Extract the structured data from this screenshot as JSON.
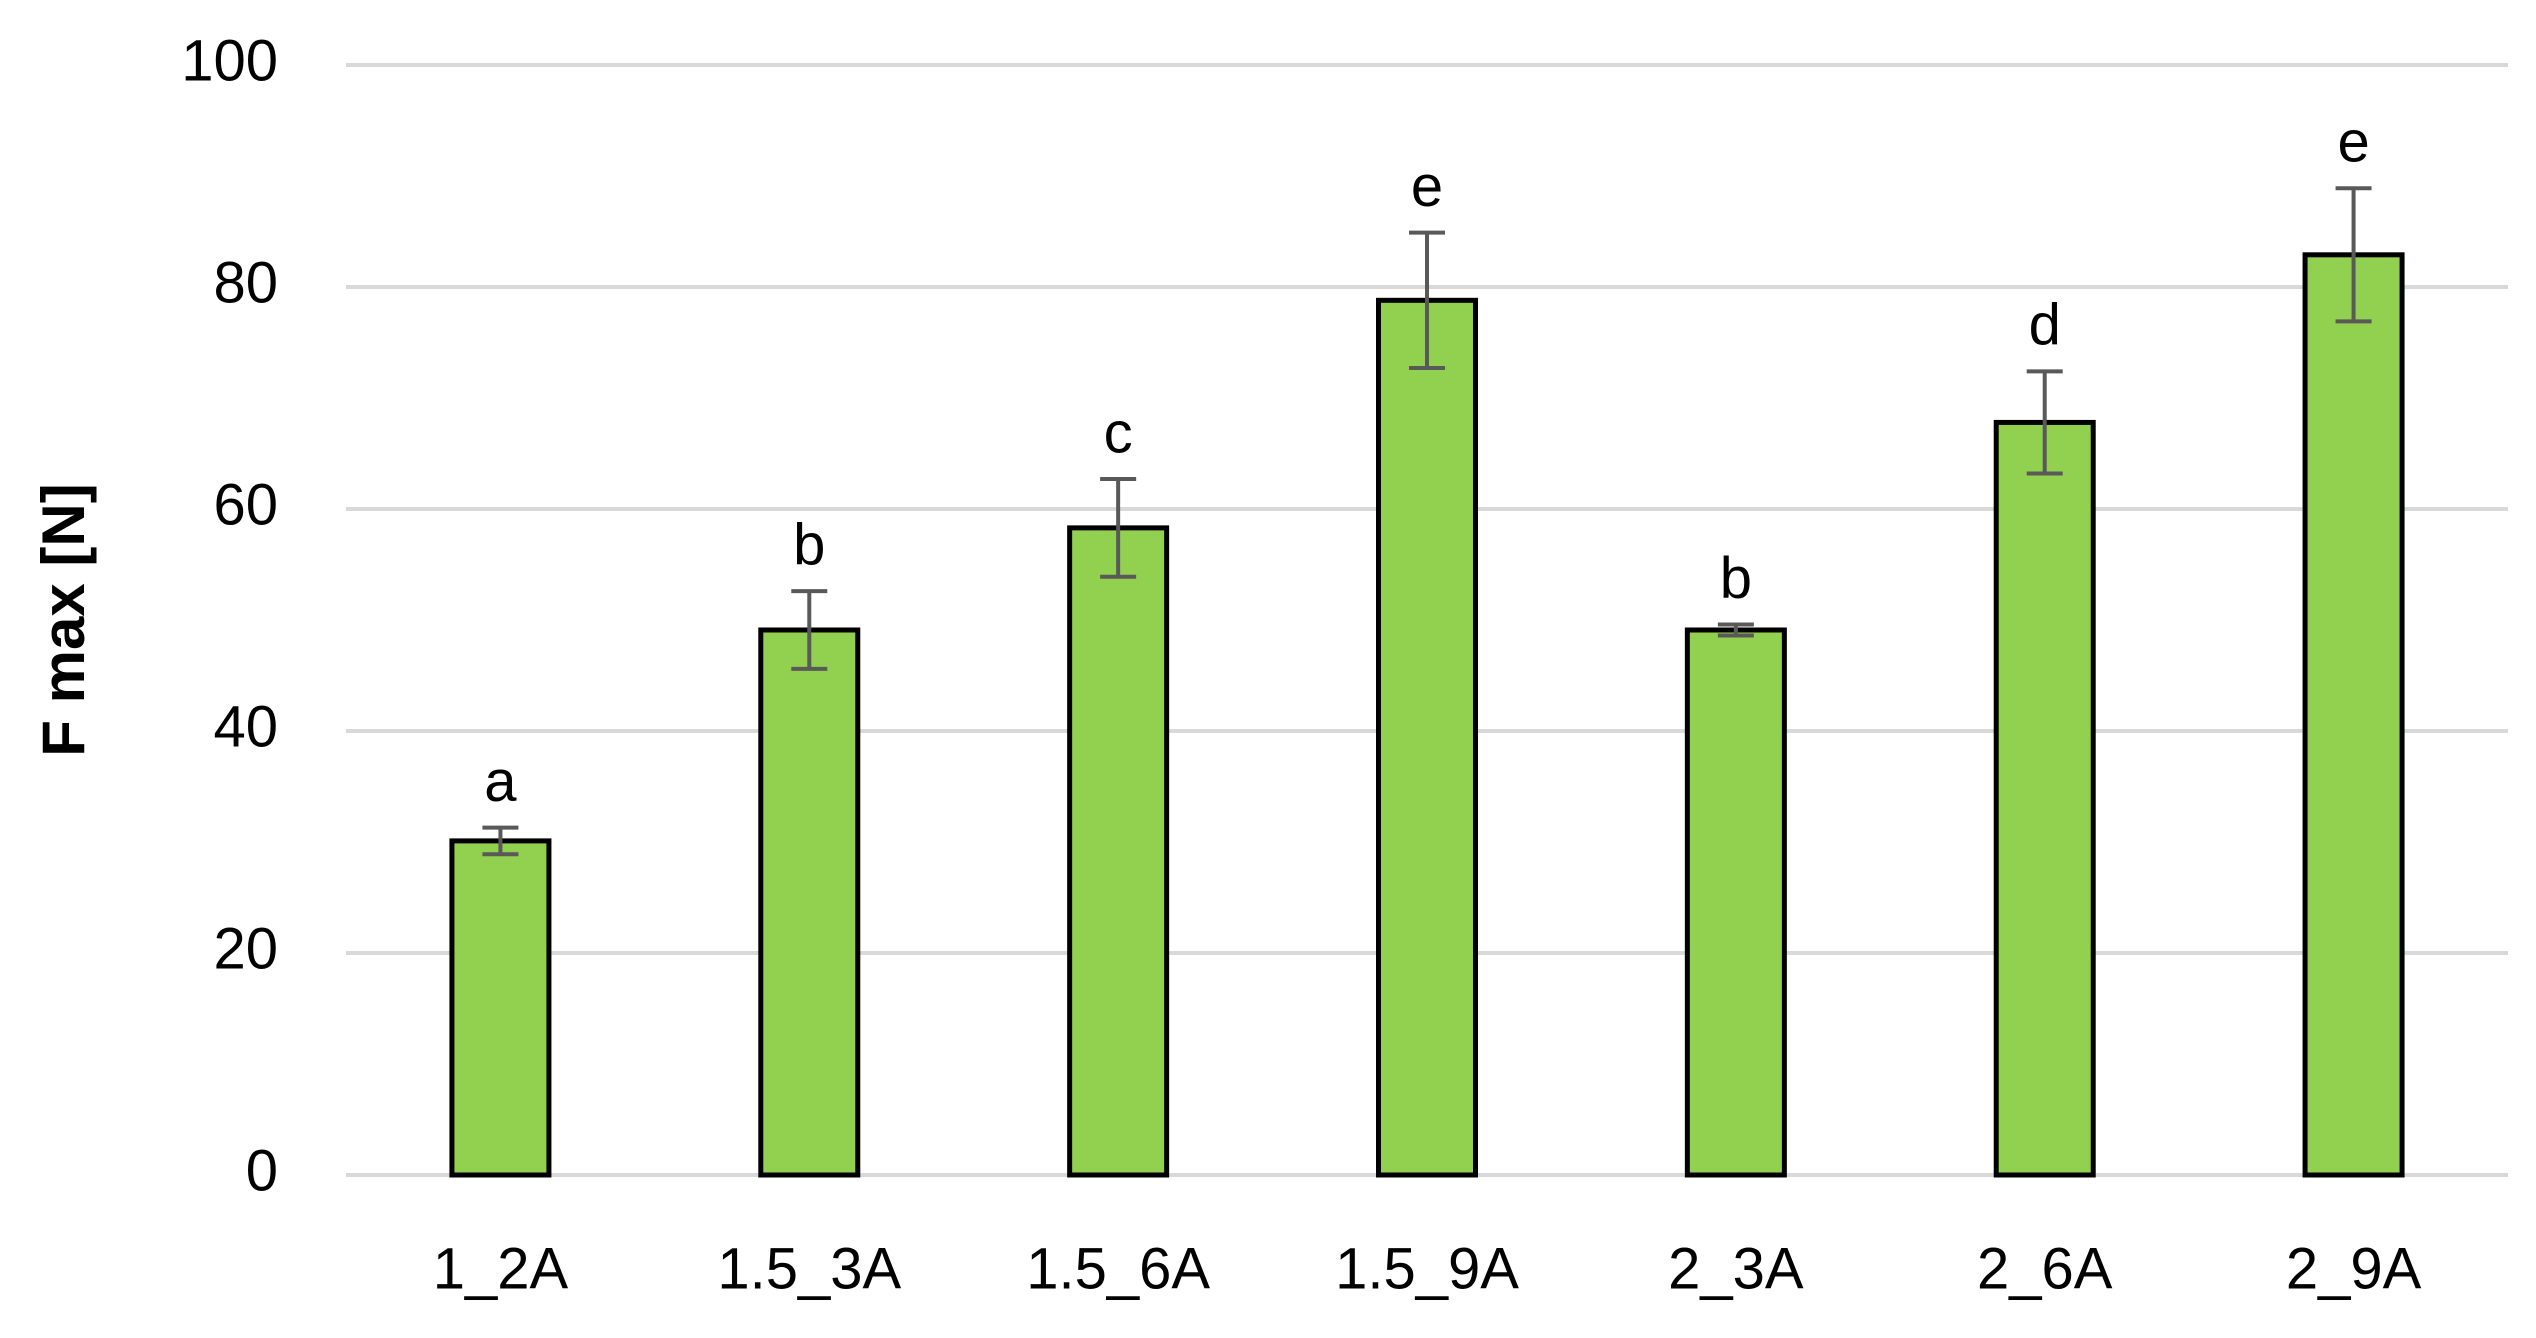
{
  "chart_data": {
    "type": "bar",
    "y_label": "F max [N]",
    "categories": [
      "1_2A",
      "1.5_3A",
      "1.5_6A",
      "1.5_9A",
      "2_3A",
      "2_6A",
      "2_9A"
    ],
    "values": [
      30.1,
      49.1,
      58.3,
      78.8,
      49.1,
      67.8,
      82.9
    ],
    "errors": [
      1.2,
      3.5,
      4.4,
      6.1,
      0.5,
      4.6,
      6.0
    ],
    "annotations": [
      "a",
      "b",
      "c",
      "e",
      "b",
      "d",
      "e"
    ],
    "color": "#92d050",
    "ylim": [
      0,
      100
    ],
    "yticks": [
      0,
      20,
      40,
      60,
      80,
      100
    ],
    "grid": true
  }
}
